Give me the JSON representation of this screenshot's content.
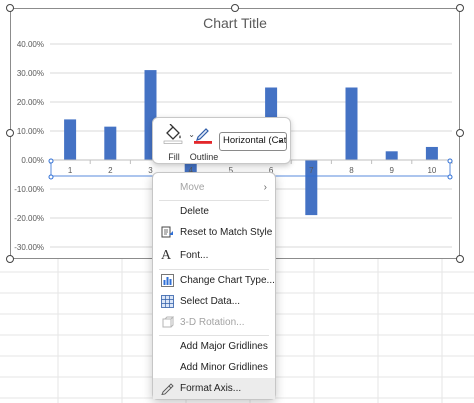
{
  "chart": {
    "title": "Chart Title",
    "selected_element": "Horizontal (Cat"
  },
  "chart_data": {
    "type": "bar",
    "title": "Chart Title",
    "categories": [
      "1",
      "2",
      "3",
      "4",
      "5",
      "6",
      "7",
      "8",
      "9",
      "10"
    ],
    "values": [
      0.14,
      0.115,
      0.31,
      -0.045,
      0.0,
      0.25,
      -0.19,
      0.25,
      0.03,
      0.045
    ],
    "ylim": [
      -0.3,
      0.4
    ],
    "yticks": [
      "-30.00%",
      "-20.00%",
      "-10.00%",
      "0.00%",
      "10.00%",
      "20.00%",
      "30.00%",
      "40.00%"
    ],
    "grid": true,
    "bar_color": "#4472c4"
  },
  "toolbar": {
    "fill_label": "Fill",
    "outline_label": "Outline",
    "dropdown_value": "Horizontal (Cat"
  },
  "menu": {
    "move": "Move",
    "delete": "Delete",
    "reset": "Reset to Match Style",
    "font": "Font...",
    "change_type": "Change Chart Type...",
    "select_data": "Select Data...",
    "rotation": "3-D Rotation...",
    "major_gridlines": "Add Major Gridlines",
    "minor_gridlines": "Add Minor Gridlines",
    "format_axis": "Format Axis..."
  },
  "colors": {
    "accent": "#2f6fd6",
    "bar": "#4472c4",
    "outline_red": "#e3262a"
  }
}
